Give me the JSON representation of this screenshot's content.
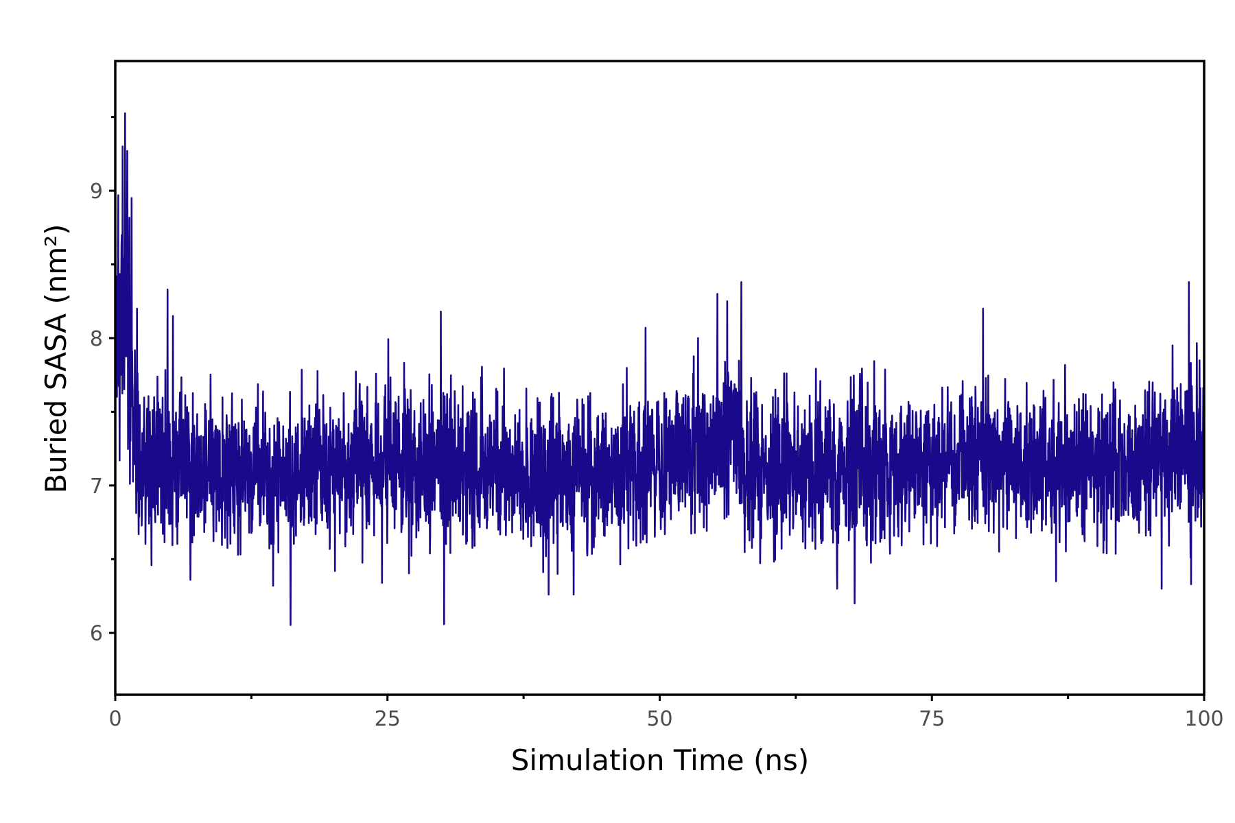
{
  "chart_data": {
    "type": "line",
    "xlabel": "Simulation Time (ns)",
    "ylabel": "Buried SASA (nm²)",
    "xlim": [
      0,
      100
    ],
    "ylim": [
      5.58,
      9.88
    ],
    "x_ticks": [
      0,
      25,
      50,
      75,
      100
    ],
    "x_tick_labels": [
      "0",
      "25",
      "50",
      "75",
      "100"
    ],
    "x_minor_ticks": [
      12.5,
      37.5,
      62.5,
      87.5
    ],
    "y_ticks": [
      6,
      7,
      8,
      9
    ],
    "y_tick_labels": [
      "6",
      "7",
      "8",
      "9"
    ],
    "y_minor_ticks": [
      6.5,
      7.5,
      8.5,
      9.5
    ],
    "grid": false,
    "legend": "none",
    "series": [
      {
        "color": "#190a8c",
        "points_per_ns": 40,
        "envelope": {
          "x": [
            0,
            1,
            2,
            5,
            10,
            20,
            25,
            30,
            38,
            40,
            42,
            45,
            50,
            55,
            57.4,
            57.6,
            60,
            65,
            68,
            72,
            73,
            75,
            80,
            85,
            90,
            95,
            98,
            100
          ],
          "mean": [
            7.95,
            8.25,
            7.2,
            7.12,
            7.1,
            7.12,
            7.15,
            7.15,
            7.05,
            7.05,
            7.08,
            7.08,
            7.15,
            7.28,
            7.38,
            7.1,
            7.12,
            7.15,
            7.1,
            7.1,
            7.2,
            7.2,
            7.18,
            7.15,
            7.15,
            7.18,
            7.22,
            7.22
          ],
          "spread": [
            0.35,
            0.45,
            0.3,
            0.25,
            0.24,
            0.24,
            0.24,
            0.25,
            0.24,
            0.26,
            0.24,
            0.24,
            0.24,
            0.26,
            0.28,
            0.26,
            0.25,
            0.25,
            0.27,
            0.26,
            0.24,
            0.24,
            0.24,
            0.24,
            0.24,
            0.24,
            0.26,
            0.26
          ]
        },
        "peaks": [
          [
            1.1,
            9.27
          ],
          [
            1.5,
            8.95
          ],
          [
            0.6,
            8.7
          ],
          [
            2.0,
            8.2
          ],
          [
            4.8,
            8.33
          ],
          [
            5.3,
            8.15
          ],
          [
            29.9,
            8.18
          ],
          [
            48.7,
            8.07
          ],
          [
            55.3,
            8.3
          ],
          [
            57.5,
            8.38
          ],
          [
            56.2,
            8.25
          ],
          [
            79.7,
            8.2
          ],
          [
            98.6,
            8.38
          ],
          [
            97.1,
            7.95
          ]
        ],
        "troughs": [
          [
            14.5,
            6.32
          ],
          [
            24.5,
            6.34
          ],
          [
            39.8,
            6.26
          ],
          [
            42.1,
            6.26
          ],
          [
            67.9,
            6.2
          ],
          [
            66.3,
            6.3
          ],
          [
            96.1,
            6.3
          ],
          [
            98.8,
            6.33
          ],
          [
            86.4,
            6.35
          ],
          [
            0.4,
            7.17
          ],
          [
            6.9,
            6.36
          ]
        ]
      }
    ]
  }
}
